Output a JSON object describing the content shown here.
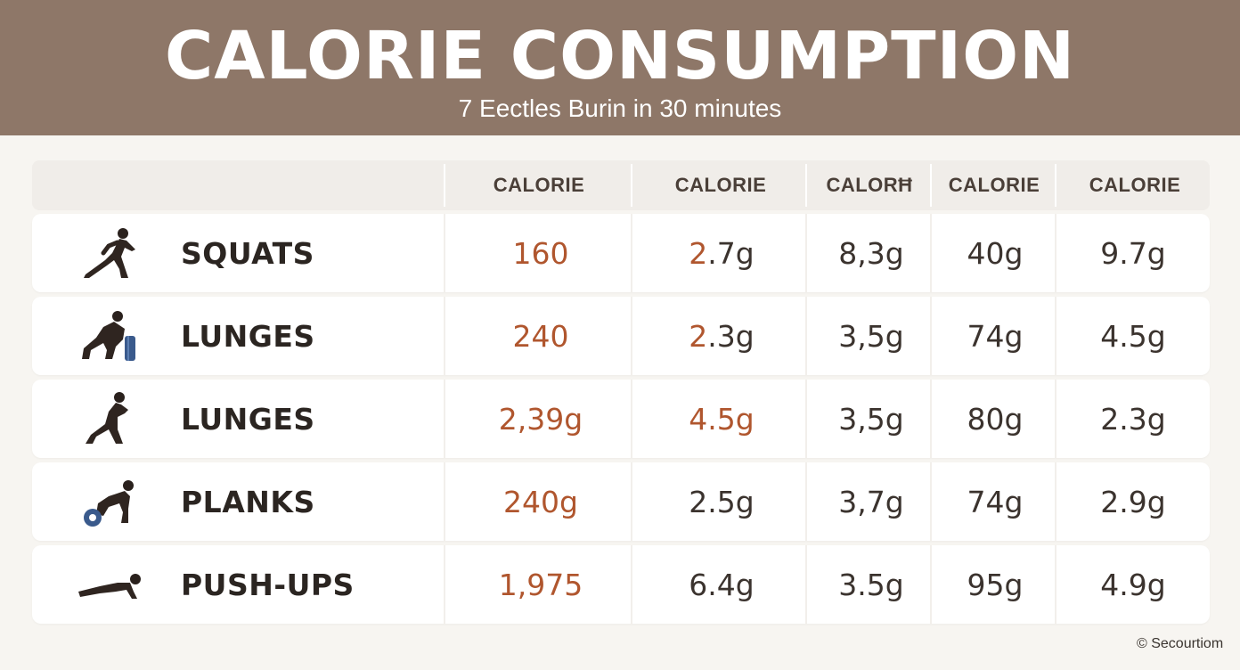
{
  "header": {
    "title": "CALORIE CONSUMPTION",
    "subtitle": "7 Eectles Burin in 30 minutes"
  },
  "table": {
    "columns": [
      "CALORIE",
      "CALORIE",
      "CALORĦ",
      "CALORIE",
      "CALORIE"
    ],
    "rows": [
      {
        "name": "SQUATS",
        "icon": "runner-icon",
        "values": [
          "160",
          "2.7g",
          "8,3g",
          "40g",
          "9.7g"
        ]
      },
      {
        "name": "LUNGES",
        "icon": "lunge-weight-icon",
        "values": [
          "240",
          "2.3g",
          "3,5g",
          "74g",
          "4.5g"
        ]
      },
      {
        "name": "LUNGES",
        "icon": "lunge-icon",
        "values": [
          "2,39g",
          "4.5g",
          "3,5g",
          "80g",
          "2.3g"
        ]
      },
      {
        "name": "PLANKS",
        "icon": "plank-wheel-icon",
        "values": [
          "240g",
          "2.5g",
          "3,7g",
          "74g",
          "2.9g"
        ]
      },
      {
        "name": "PUSH-UPS",
        "icon": "pushup-icon",
        "values": [
          "1,975",
          "6.4g",
          "3.5g",
          "95g",
          "4.9g"
        ]
      }
    ]
  },
  "footer": {
    "credit": "© Secourtiom"
  },
  "colors": {
    "banner": "#8e7768",
    "accent_orange": "#b0562e",
    "text_dark": "#2b2521",
    "background": "#f7f5f1"
  }
}
